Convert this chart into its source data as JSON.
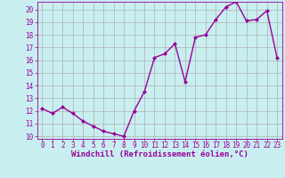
{
  "x": [
    0,
    1,
    2,
    3,
    4,
    5,
    6,
    7,
    8,
    9,
    10,
    11,
    12,
    13,
    14,
    15,
    16,
    17,
    18,
    19,
    20,
    21,
    22,
    23
  ],
  "y": [
    12.2,
    11.8,
    12.3,
    11.8,
    11.2,
    10.8,
    10.4,
    10.2,
    10.0,
    12.0,
    13.5,
    16.2,
    16.5,
    17.3,
    14.3,
    17.8,
    18.0,
    19.2,
    20.2,
    20.6,
    19.1,
    19.2,
    19.9,
    16.2
  ],
  "line_color": "#990099",
  "marker": "D",
  "marker_size": 2,
  "bg_color": "#c8eef0",
  "grid_color": "#b0b0b0",
  "xlabel": "Windchill (Refroidissement éolien,°C)",
  "ylabel": "",
  "ylim": [
    9.8,
    20.6
  ],
  "xlim": [
    -0.5,
    23.5
  ],
  "yticks": [
    10,
    11,
    12,
    13,
    14,
    15,
    16,
    17,
    18,
    19,
    20
  ],
  "xticks": [
    0,
    1,
    2,
    3,
    4,
    5,
    6,
    7,
    8,
    9,
    10,
    11,
    12,
    13,
    14,
    15,
    16,
    17,
    18,
    19,
    20,
    21,
    22,
    23
  ],
  "tick_color": "#990099",
  "label_color": "#990099",
  "label_fontsize": 6.5,
  "tick_fontsize": 5.5,
  "linewidth": 1.0
}
